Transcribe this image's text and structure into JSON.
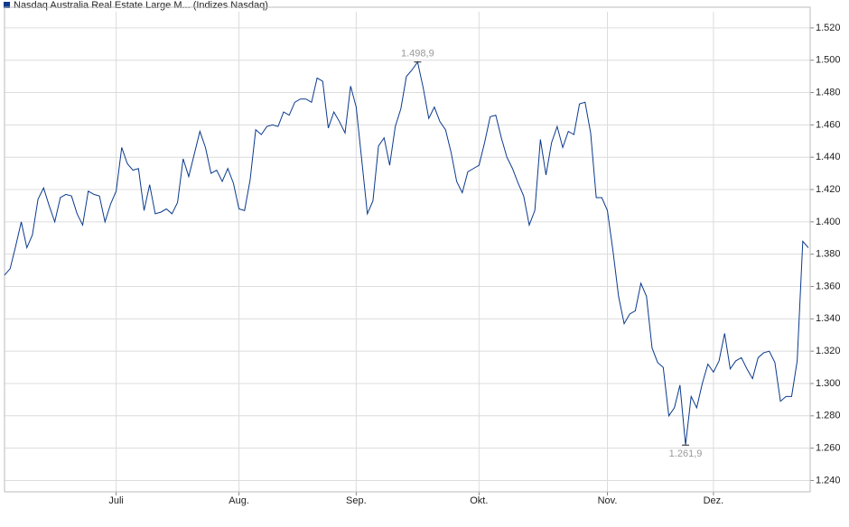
{
  "chart_data": {
    "type": "line",
    "categories": [
      null,
      null,
      null,
      null,
      null,
      null,
      null,
      null,
      null,
      null,
      null,
      null,
      null,
      null,
      null,
      null,
      null,
      null,
      null,
      null,
      "Juli",
      null,
      null,
      null,
      null,
      null,
      null,
      null,
      null,
      null,
      null,
      null,
      null,
      null,
      null,
      null,
      null,
      null,
      null,
      null,
      null,
      null,
      "Aug.",
      null,
      null,
      null,
      null,
      null,
      null,
      null,
      null,
      null,
      null,
      null,
      null,
      null,
      null,
      null,
      null,
      null,
      null,
      null,
      null,
      "Sep.",
      null,
      null,
      null,
      null,
      null,
      null,
      null,
      null,
      null,
      null,
      null,
      null,
      null,
      null,
      null,
      null,
      null,
      null,
      null,
      null,
      null,
      "Okt.",
      null,
      null,
      null,
      null,
      null,
      null,
      null,
      null,
      null,
      null,
      null,
      null,
      null,
      null,
      null,
      null,
      null,
      null,
      null,
      null,
      null,
      null,
      "Nov.",
      null,
      null,
      null,
      null,
      null,
      null,
      null,
      null,
      null,
      null,
      null,
      null,
      null,
      null,
      null,
      null,
      null,
      null,
      "Dez.",
      null,
      null,
      null,
      null,
      null,
      null,
      null,
      null,
      null,
      null,
      null,
      null,
      null,
      null,
      null,
      null,
      null
    ],
    "series": [
      {
        "name": "Nasdaq Australia Real Estate Large M... (Indizes Nasdaq)",
        "color": "#0b3a8c",
        "values": [
          1367,
          1371,
          1385,
          1400,
          1384,
          1392,
          1414,
          1421,
          1410,
          1400,
          1415,
          1417,
          1416,
          1405,
          1398,
          1419,
          1417,
          1416,
          1400,
          1411,
          1419,
          1446,
          1436,
          1432,
          1433,
          1407,
          1423,
          1405,
          1406,
          1408,
          1405,
          1412,
          1439,
          1428,
          1442,
          1456,
          1446,
          1430,
          1432,
          1425,
          1433,
          1424,
          1408,
          1407,
          1426,
          1457,
          1454,
          1459,
          1460,
          1459,
          1468,
          1466,
          1474,
          1476,
          1476,
          1474,
          1489,
          1487,
          1458,
          1468,
          1462,
          1455,
          1484,
          1471,
          1438,
          1405,
          1413,
          1447,
          1452,
          1435,
          1459,
          1470,
          1490,
          1494,
          1498.9,
          1483,
          1464,
          1471,
          1462,
          1457,
          1443,
          1425,
          1418,
          1431,
          1433,
          1435,
          1449,
          1465,
          1466,
          1452,
          1440,
          1433,
          1424,
          1416,
          1398,
          1407,
          1451,
          1429,
          1449,
          1459,
          1446,
          1456,
          1454,
          1473,
          1474,
          1455,
          1415,
          1415,
          1407,
          1382,
          1354,
          1337,
          1343,
          1345,
          1362,
          1354,
          1322,
          1313,
          1310,
          1280,
          1285,
          1299,
          1261.9,
          1292,
          1285,
          1300,
          1312,
          1307,
          1314,
          1331,
          1309,
          1314,
          1316,
          1309,
          1303,
          1316,
          1319,
          1320,
          1313,
          1289,
          1292,
          1292,
          1314,
          1388,
          1384
        ]
      }
    ],
    "annotations": [
      {
        "value": 1498.9,
        "label": "1.498,9"
      },
      {
        "value": 1261.9,
        "label": "1.261,9"
      }
    ],
    "ylim": [
      1233,
      1530
    ],
    "yticks": [
      {
        "value": 1240,
        "label": "1.240"
      },
      {
        "value": 1260,
        "label": "1.260"
      },
      {
        "value": 1280,
        "label": "1.280"
      },
      {
        "value": 1300,
        "label": "1.300"
      },
      {
        "value": 1320,
        "label": "1.320"
      },
      {
        "value": 1340,
        "label": "1.340"
      },
      {
        "value": 1360,
        "label": "1.360"
      },
      {
        "value": 1380,
        "label": "1.380"
      },
      {
        "value": 1400,
        "label": "1.400"
      },
      {
        "value": 1420,
        "label": "1.420"
      },
      {
        "value": 1440,
        "label": "1.440"
      },
      {
        "value": 1460,
        "label": "1.460"
      },
      {
        "value": 1480,
        "label": "1.480"
      },
      {
        "value": 1500,
        "label": "1.500"
      },
      {
        "value": 1520,
        "label": "1.520"
      }
    ],
    "grid": true
  }
}
